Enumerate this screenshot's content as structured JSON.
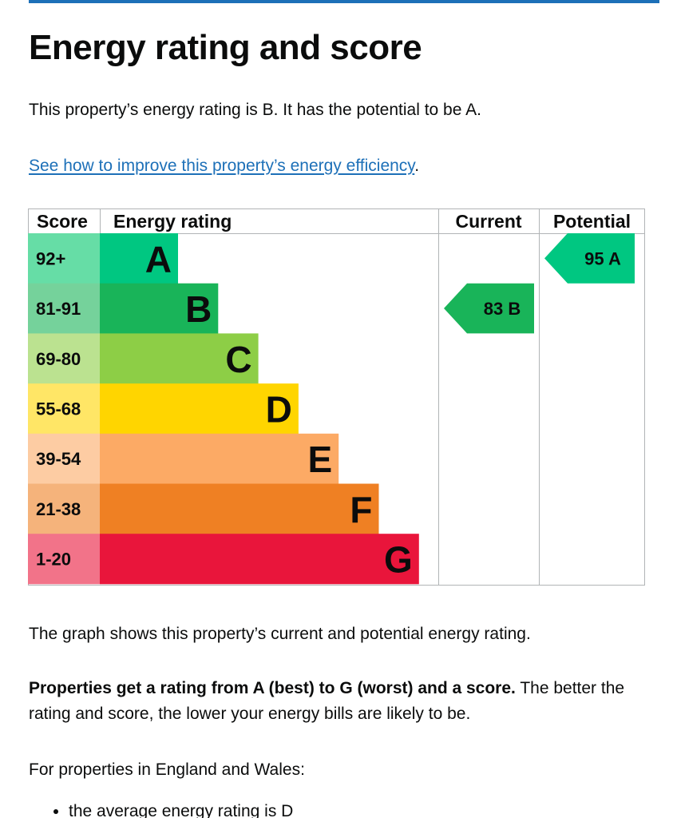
{
  "page": {
    "heading": "Energy rating and score",
    "intro": "This property’s energy rating is B. It has the potential to be A.",
    "link_text": "See how to improve this property’s energy efficiency",
    "link_suffix": ".",
    "graph_caption": "The graph shows this property’s current and potential energy rating.",
    "ratings_bold": "Properties get a rating from A (best) to G (worst) and a score.",
    "ratings_rest": " The better the rating and score, the lower your energy bills are likely to be.",
    "region_intro": "For properties in England and Wales:",
    "bullets": [
      "the average energy rating is D"
    ]
  },
  "chart_data": {
    "type": "table",
    "columns": {
      "score": "Score",
      "rating": "Energy rating",
      "current": "Current",
      "potential": "Potential"
    },
    "bands": [
      {
        "letter": "A",
        "range": "92+",
        "color": "#00c781",
        "score_bg": "#66dda6"
      },
      {
        "letter": "B",
        "range": "81-91",
        "color": "#19b459",
        "score_bg": "#75d29b"
      },
      {
        "letter": "C",
        "range": "69-80",
        "color": "#8dce46",
        "score_bg": "#bbe290"
      },
      {
        "letter": "D",
        "range": "55-68",
        "color": "#ffd500",
        "score_bg": "#ffe666"
      },
      {
        "letter": "E",
        "range": "39-54",
        "color": "#fcaa65",
        "score_bg": "#fdcca3"
      },
      {
        "letter": "F",
        "range": "21-38",
        "color": "#ef8023",
        "score_bg": "#f5b37b"
      },
      {
        "letter": "G",
        "range": "1-20",
        "color": "#e9153b",
        "score_bg": "#f27389"
      }
    ],
    "current": {
      "score": 83,
      "letter": "B",
      "label": "83 B"
    },
    "potential": {
      "score": 95,
      "letter": "A",
      "label": "95 A"
    }
  }
}
